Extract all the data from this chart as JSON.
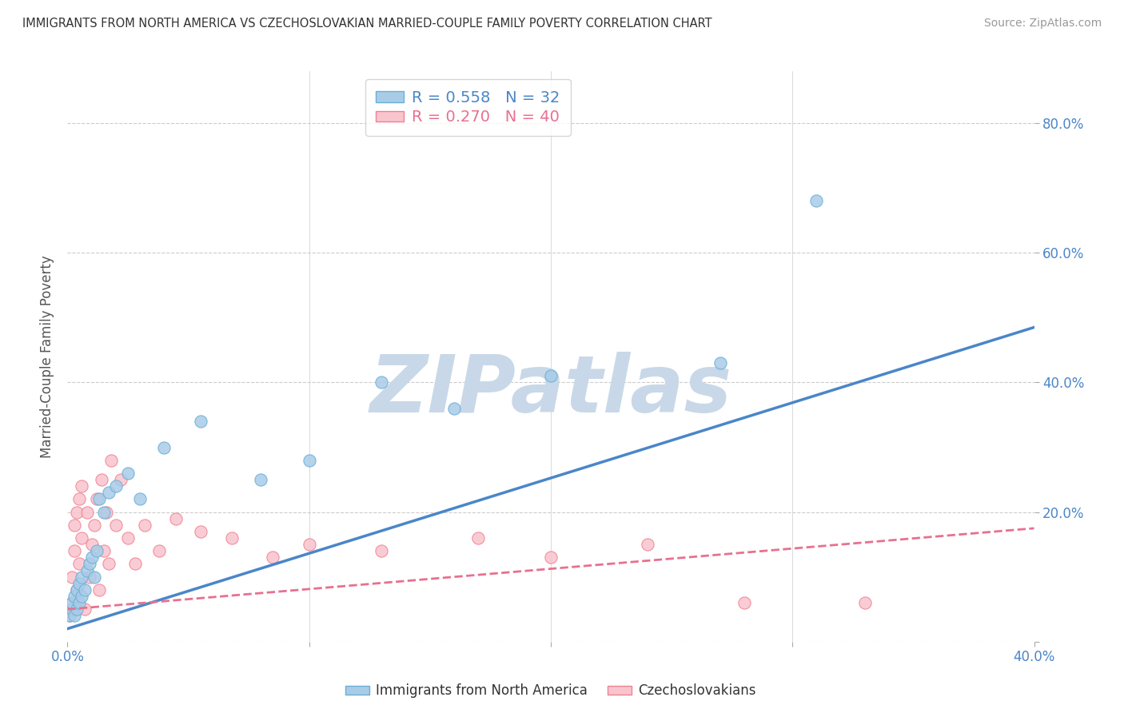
{
  "title": "IMMIGRANTS FROM NORTH AMERICA VS CZECHOSLOVAKIAN MARRIED-COUPLE FAMILY POVERTY CORRELATION CHART",
  "source": "Source: ZipAtlas.com",
  "ylabel": "Married-Couple Family Poverty",
  "xlim": [
    0.0,
    0.4
  ],
  "ylim": [
    0.0,
    0.88
  ],
  "xticks": [
    0.0,
    0.1,
    0.2,
    0.3,
    0.4
  ],
  "xtick_labels_bottom": [
    "0.0%",
    "",
    "",
    "",
    "40.0%"
  ],
  "yticks": [
    0.0,
    0.2,
    0.4,
    0.6,
    0.8
  ],
  "ytick_labels_right": [
    "",
    "20.0%",
    "40.0%",
    "60.0%",
    "80.0%"
  ],
  "blue_scatter_color": "#a8cce8",
  "blue_edge_color": "#6aaed6",
  "pink_scatter_color": "#f9c4ce",
  "pink_edge_color": "#f08090",
  "blue_line_color": "#4a86c8",
  "pink_line_color": "#e87090",
  "grid_color": "#cccccc",
  "background_color": "#ffffff",
  "tick_label_color": "#4a86c8",
  "watermark": "ZIPatlas",
  "watermark_color": "#c8d8e8",
  "R_blue": 0.558,
  "N_blue": 32,
  "R_pink": 0.27,
  "N_pink": 40,
  "legend_label_blue": "Immigrants from North America",
  "legend_label_pink": "Czechoslovakians",
  "blue_line_y0": 0.02,
  "blue_line_y1": 0.485,
  "pink_line_y0": 0.05,
  "pink_line_y1": 0.175,
  "blue_scatter_x": [
    0.001,
    0.002,
    0.002,
    0.003,
    0.003,
    0.004,
    0.004,
    0.005,
    0.005,
    0.006,
    0.006,
    0.007,
    0.008,
    0.009,
    0.01,
    0.011,
    0.012,
    0.013,
    0.015,
    0.017,
    0.02,
    0.025,
    0.03,
    0.04,
    0.055,
    0.08,
    0.1,
    0.13,
    0.16,
    0.2,
    0.27,
    0.31
  ],
  "blue_scatter_y": [
    0.04,
    0.05,
    0.06,
    0.04,
    0.07,
    0.05,
    0.08,
    0.06,
    0.09,
    0.07,
    0.1,
    0.08,
    0.11,
    0.12,
    0.13,
    0.1,
    0.14,
    0.22,
    0.2,
    0.23,
    0.24,
    0.26,
    0.22,
    0.3,
    0.34,
    0.25,
    0.28,
    0.4,
    0.36,
    0.41,
    0.43,
    0.68
  ],
  "pink_scatter_x": [
    0.001,
    0.002,
    0.002,
    0.003,
    0.003,
    0.004,
    0.004,
    0.005,
    0.005,
    0.006,
    0.006,
    0.007,
    0.008,
    0.009,
    0.01,
    0.011,
    0.012,
    0.013,
    0.014,
    0.015,
    0.016,
    0.017,
    0.018,
    0.02,
    0.022,
    0.025,
    0.028,
    0.032,
    0.038,
    0.045,
    0.055,
    0.068,
    0.085,
    0.1,
    0.13,
    0.17,
    0.2,
    0.24,
    0.28,
    0.33
  ],
  "pink_scatter_y": [
    0.04,
    0.06,
    0.1,
    0.14,
    0.18,
    0.08,
    0.2,
    0.12,
    0.22,
    0.16,
    0.24,
    0.05,
    0.2,
    0.1,
    0.15,
    0.18,
    0.22,
    0.08,
    0.25,
    0.14,
    0.2,
    0.12,
    0.28,
    0.18,
    0.25,
    0.16,
    0.12,
    0.18,
    0.14,
    0.19,
    0.17,
    0.16,
    0.13,
    0.15,
    0.14,
    0.16,
    0.13,
    0.15,
    0.06,
    0.06
  ]
}
